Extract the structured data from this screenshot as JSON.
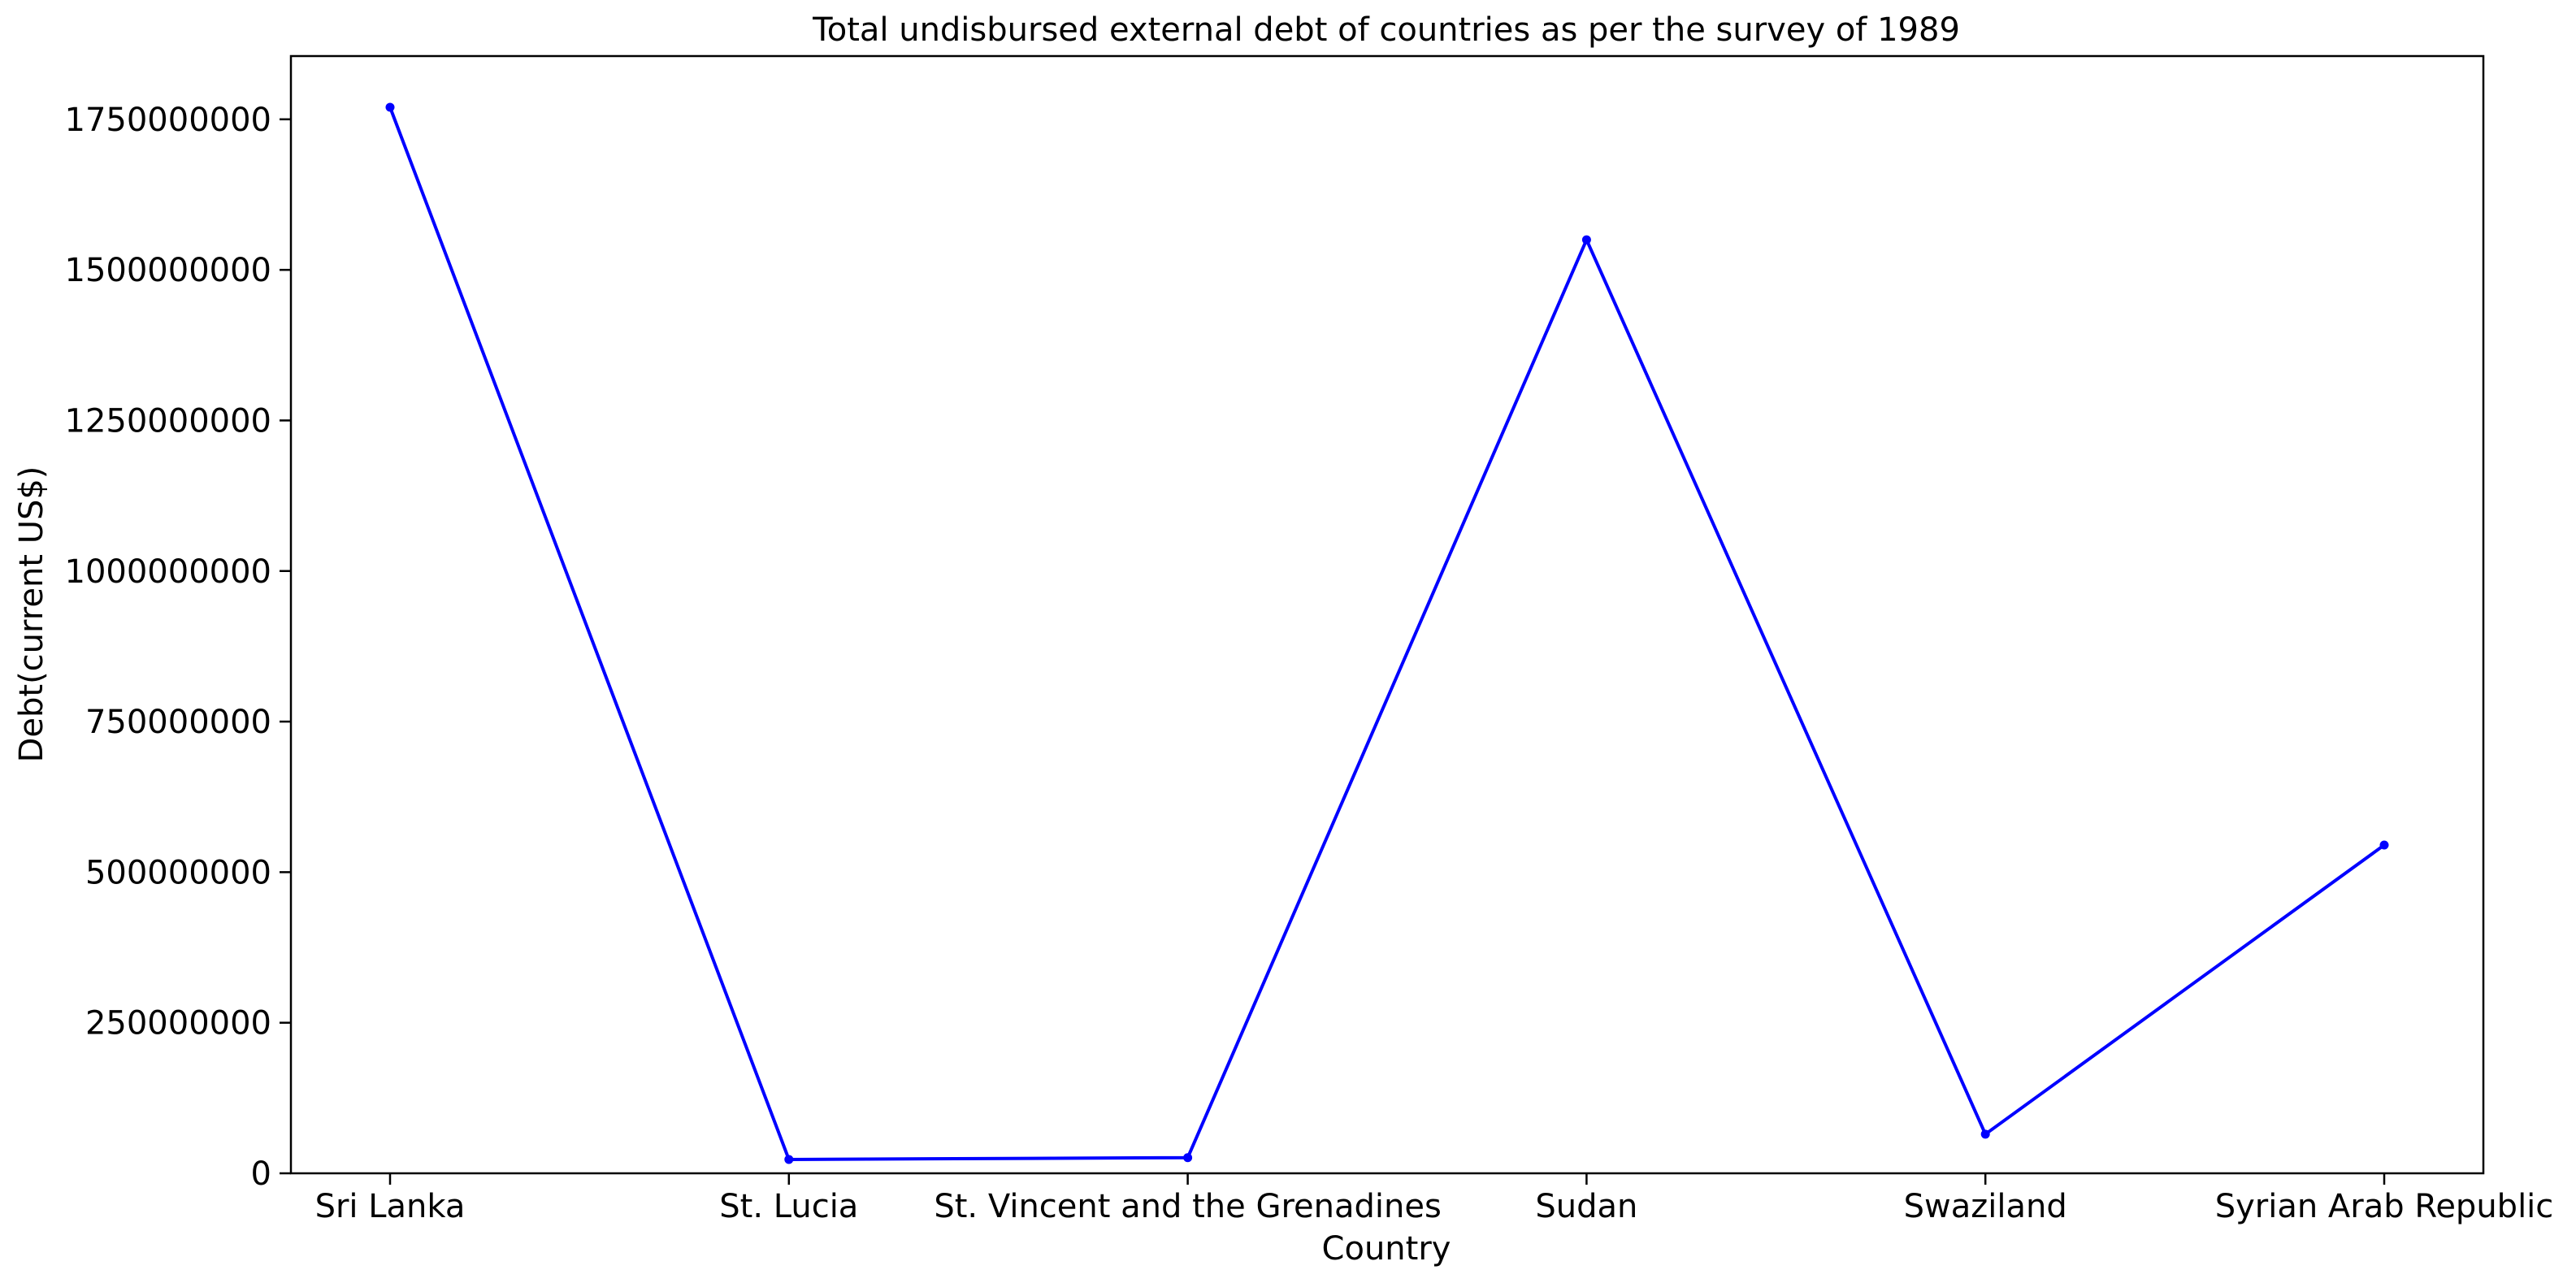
{
  "chart_data": {
    "type": "line",
    "title": "Total undisbursed external debt of countries as per the survey of 1989",
    "xlabel": "Country",
    "ylabel": "Debt(current US$)",
    "categories": [
      "Sri Lanka",
      "St. Lucia",
      "St. Vincent and the Grenadines",
      "Sudan",
      "Swaziland",
      "Syrian Arab Republic"
    ],
    "series": [
      {
        "values": [
          1770000000,
          23000000,
          26000000,
          1550000000,
          65000000,
          545000000
        ],
        "color": "#0000ff"
      }
    ],
    "ylim": [
      0,
      1855000000
    ],
    "yticks": [
      0,
      250000000,
      500000000,
      750000000,
      1000000000,
      1250000000,
      1500000000,
      1750000000
    ],
    "ytick_labels": [
      "0",
      "250000000",
      "500000000",
      "750000000",
      "1000000000",
      "1250000000",
      "1500000000",
      "1750000000"
    ],
    "grid": false,
    "legend": "none"
  }
}
